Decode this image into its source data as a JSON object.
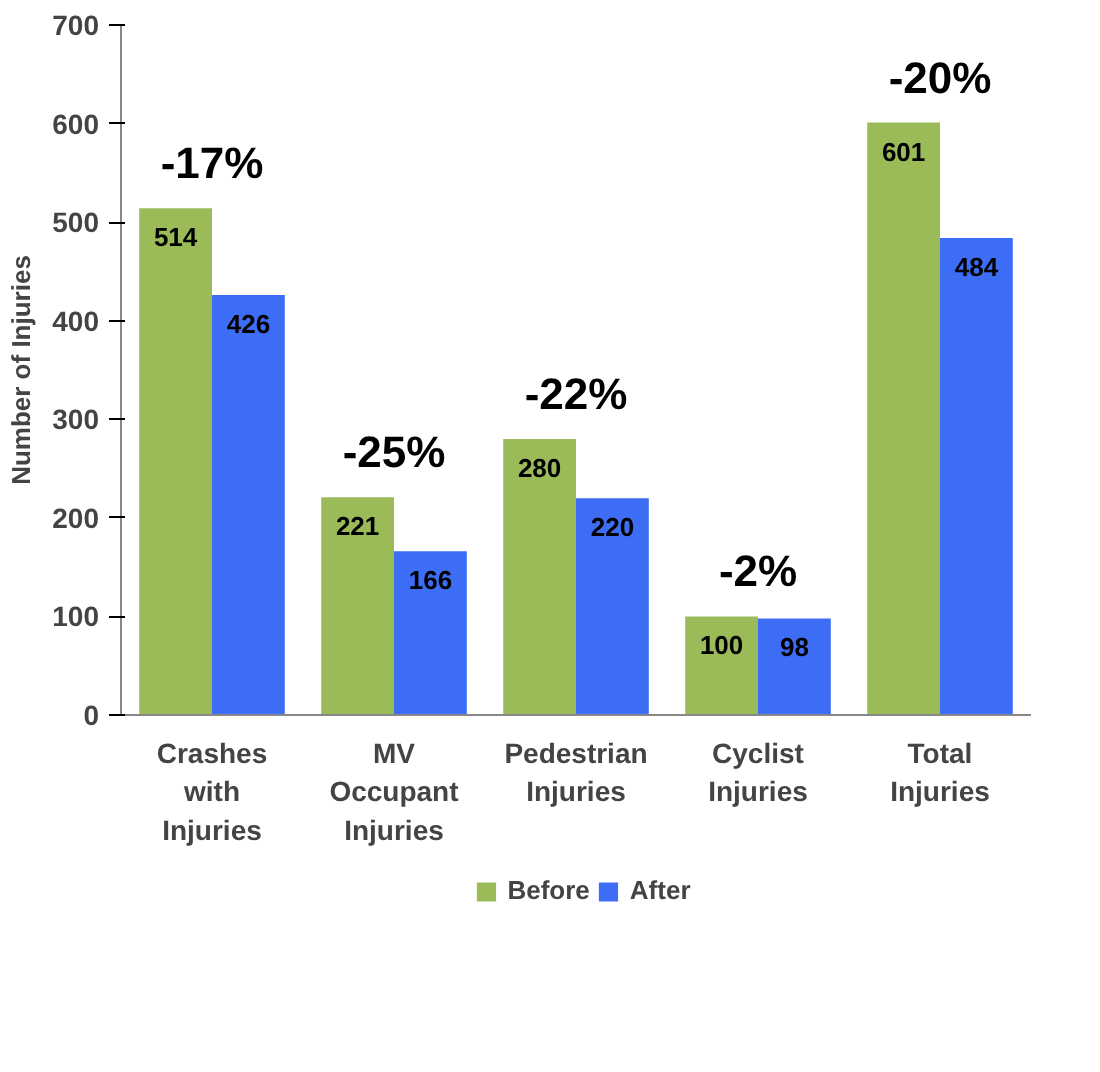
{
  "chart_data": {
    "type": "bar",
    "ylabel": "Number of Injuries",
    "categories": [
      "Crashes with Injuries",
      "MV Occupant Injuries",
      "Pedestrian Injuries",
      "Cyclist Injuries",
      "Total Injuries"
    ],
    "series": [
      {
        "name": "Before",
        "color": "#9bbb59",
        "values": [
          514,
          221,
          280,
          100,
          601
        ]
      },
      {
        "name": "After",
        "color": "#3d6cf5",
        "values": [
          426,
          166,
          220,
          98,
          484
        ]
      }
    ],
    "ylim": [
      0,
      700
    ],
    "yticks": [
      0,
      100,
      200,
      300,
      400,
      500,
      600,
      700
    ],
    "data_labels": true,
    "grid": false,
    "legend": "bottom",
    "annotations": [
      "-17%",
      "-25%",
      "-22%",
      "-2%",
      "-20%"
    ]
  }
}
